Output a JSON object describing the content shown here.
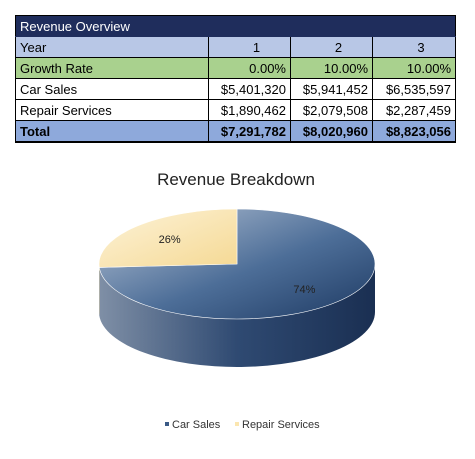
{
  "table": {
    "title": "Revenue Overview",
    "header": [
      "Year",
      "1",
      "2",
      "3"
    ],
    "rows": [
      {
        "label": "Growth Rate",
        "values": [
          "0.00%",
          "10.00%",
          "10.00%"
        ]
      },
      {
        "label": "Car Sales",
        "values": [
          "$5,401,320",
          "$5,941,452",
          "$6,535,597"
        ]
      },
      {
        "label": "Repair Services",
        "values": [
          "$1,890,462",
          "$2,079,508",
          "$2,287,459"
        ]
      }
    ],
    "total": {
      "label": "Total",
      "values": [
        "$7,291,782",
        "$8,020,960",
        "$8,823,056"
      ]
    }
  },
  "chart_data": {
    "type": "pie",
    "title": "Revenue Breakdown",
    "labels": [
      "Car Sales",
      "Repair Services"
    ],
    "values": [
      74,
      26
    ],
    "value_labels": [
      "74%",
      "26%"
    ],
    "colors": [
      "#3a5a86",
      "#fbe6b0"
    ],
    "legend_position": "bottom"
  }
}
